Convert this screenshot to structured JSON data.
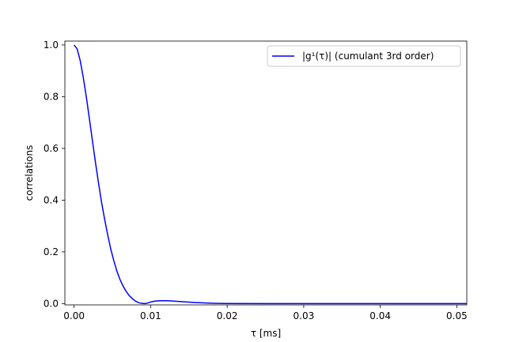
{
  "chart_data": {
    "type": "line",
    "title": "",
    "xlabel": "τ [ms]",
    "ylabel": "correlations",
    "xlim": [
      -0.0012,
      0.0513
    ],
    "ylim": [
      -0.005,
      1.015
    ],
    "xticks": [
      0.0,
      0.01,
      0.02,
      0.03,
      0.04,
      0.05
    ],
    "xtick_labels": [
      "0.00",
      "0.01",
      "0.02",
      "0.03",
      "0.04",
      "0.05"
    ],
    "yticks": [
      0.0,
      0.2,
      0.4,
      0.6,
      0.8,
      1.0
    ],
    "ytick_labels": [
      "0.0",
      "0.2",
      "0.4",
      "0.6",
      "0.8",
      "1.0"
    ],
    "grid": false,
    "legend_position": "top-right",
    "series": [
      {
        "name": "|g¹(τ)| (cumulant 3rd order)",
        "color": "#0000ff",
        "x": [
          0.0,
          0.0004,
          0.0008,
          0.0012,
          0.0016,
          0.002,
          0.0024,
          0.0028,
          0.0032,
          0.0036,
          0.004,
          0.0044,
          0.0048,
          0.0052,
          0.0056,
          0.006,
          0.0064,
          0.0068,
          0.0072,
          0.0076,
          0.008,
          0.0084,
          0.0088,
          0.0092,
          0.0096,
          0.01,
          0.0105,
          0.011,
          0.0115,
          0.012,
          0.0125,
          0.013,
          0.014,
          0.015,
          0.016,
          0.017,
          0.018,
          0.019,
          0.02,
          0.025,
          0.03,
          0.035,
          0.04,
          0.045,
          0.05,
          0.0513
        ],
        "y": [
          1.0,
          0.985,
          0.94,
          0.875,
          0.8,
          0.715,
          0.63,
          0.545,
          0.465,
          0.39,
          0.325,
          0.265,
          0.21,
          0.165,
          0.125,
          0.093,
          0.068,
          0.047,
          0.031,
          0.019,
          0.01,
          0.004,
          0.001,
          0.0,
          0.002,
          0.006,
          0.009,
          0.0105,
          0.011,
          0.011,
          0.0105,
          0.0095,
          0.0075,
          0.0055,
          0.0038,
          0.0025,
          0.0015,
          0.0008,
          0.0004,
          0.0,
          0.0,
          0.0,
          0.0,
          0.0,
          0.0,
          0.0
        ]
      }
    ]
  }
}
